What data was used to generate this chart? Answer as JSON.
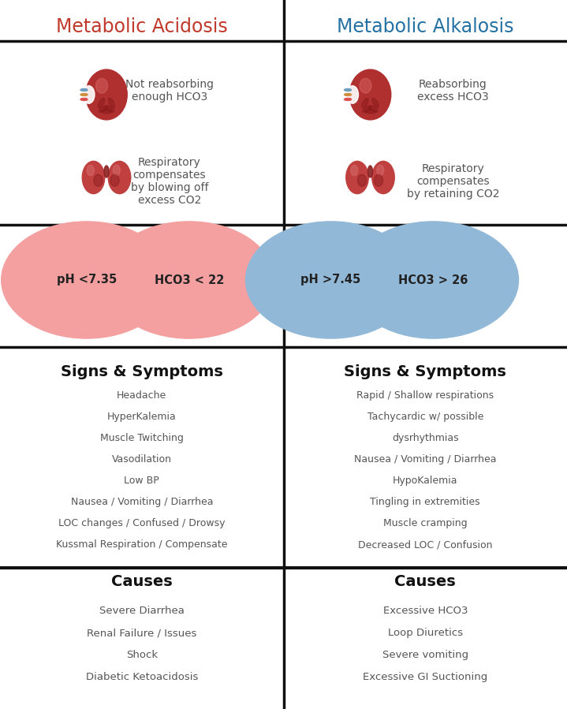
{
  "bg_color": "#ffffff",
  "divider_color": "#111111",
  "left_title": "Metabolic Acidosis",
  "right_title": "Metabolic Alkalosis",
  "left_title_color": "#c0392b",
  "right_title_color": "#2471a3",
  "left_kidney_text": "Not reabsorbing\nenough HCO3",
  "right_kidney_text": "Reabsorbing\nexcess HCO3",
  "left_lung_text": "Respiratory\ncompensates\nby blowing off\nexcess CO2",
  "right_lung_text": "Respiratory\ncompensates\nby retaining CO2",
  "left_circle1_color": "#f4a0a0",
  "left_circle2_color": "#f4a0a0",
  "right_circle1_color": "#92b8d8",
  "right_circle2_color": "#92b8d8",
  "left_circle1_text": "pH <7.35",
  "left_circle2_text": "HCO3 < 22",
  "right_circle1_text": "pH >7.45",
  "right_circle2_text": "HCO3 > 26",
  "signs_symptoms_label": "Signs & Symptoms",
  "left_symptoms": [
    "Headache",
    "HyperKalemia",
    "Muscle Twitching",
    "Vasodilation",
    "Low BP",
    "Nausea / Vomiting / Diarrhea",
    "LOC changes / Confused / Drowsy",
    "Kussmal Respiration / Compensate"
  ],
  "right_symptoms": [
    "Rapid / Shallow respirations",
    "Tachycardic w/ possible",
    "dysrhythmias",
    "Nausea / Vomiting / Diarrhea",
    "HypoKalemia",
    "Tingling in extremities",
    "Muscle cramping",
    "Decreased LOC / Confusion"
  ],
  "causes_label": "Causes",
  "left_causes": [
    "Severe Diarrhea",
    "Renal Failure / Issues",
    "Shock",
    "Diabetic Ketoacidosis"
  ],
  "right_causes": [
    "Excessive HCO3",
    "Loop Diuretics",
    "Severe vomiting",
    "Excessive GI Suctioning"
  ],
  "text_color": "#555555",
  "header_text_color": "#111111",
  "organ_base_color": "#b03030",
  "organ_mid_color": "#c04040",
  "organ_light_color": "#d06060",
  "organ_dark_color": "#7a1a1a"
}
